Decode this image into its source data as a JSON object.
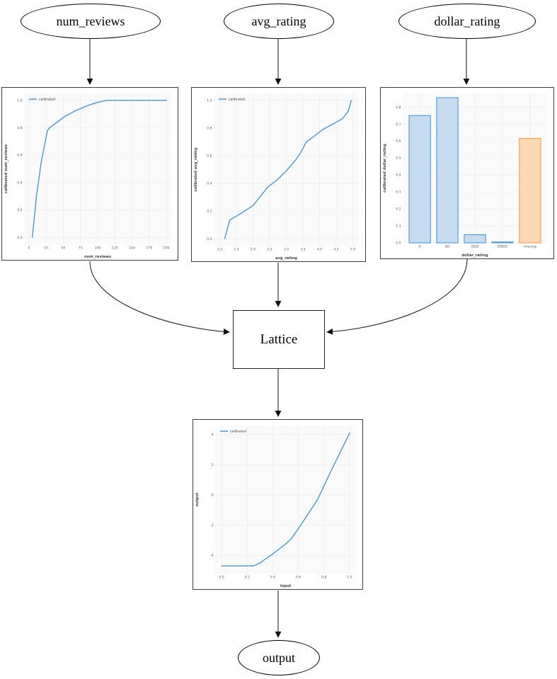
{
  "diagram": {
    "nodes": {
      "num_reviews": {
        "label": "num_reviews",
        "shape": "ellipse"
      },
      "avg_rating": {
        "label": "avg_rating",
        "shape": "ellipse"
      },
      "dollar_rating": {
        "label": "dollar_rating",
        "shape": "ellipse"
      },
      "lattice": {
        "label": "Lattice",
        "shape": "box"
      },
      "output": {
        "label": "output",
        "shape": "ellipse"
      }
    },
    "edges": [
      {
        "from": "num_reviews",
        "to": "calibration-num-reviews"
      },
      {
        "from": "avg_rating",
        "to": "calibration-avg-rating"
      },
      {
        "from": "dollar_rating",
        "to": "calibration-dollar-rating"
      },
      {
        "from": "calibration-num-reviews",
        "to": "lattice"
      },
      {
        "from": "calibration-avg-rating",
        "to": "lattice"
      },
      {
        "from": "calibration-dollar-rating",
        "to": "lattice"
      },
      {
        "from": "lattice",
        "to": "output-calibration"
      },
      {
        "from": "output-calibration",
        "to": "output"
      }
    ],
    "colors": {
      "node_border": "#000000",
      "edge": "#111111"
    }
  },
  "chart_data": [
    {
      "id": "calibration-num-reviews",
      "type": "line",
      "title": "",
      "xlabel": "num_reviews",
      "ylabel": "calibrated num_reviews",
      "legend": [
        "calibrated"
      ],
      "line_color": "#4a98d3",
      "xlim": [
        -7,
        207
      ],
      "ylim": [
        -0.05,
        1.05
      ],
      "x_ticks": [
        {
          "v": 0,
          "label": "0"
        },
        {
          "v": 25,
          "label": "25"
        },
        {
          "v": 50,
          "label": "50"
        },
        {
          "v": 75,
          "label": "75"
        },
        {
          "v": 100,
          "label": "100"
        },
        {
          "v": 125,
          "label": "125"
        },
        {
          "v": 150,
          "label": "150"
        },
        {
          "v": 175,
          "label": "175"
        },
        {
          "v": 200,
          "label": "200"
        }
      ],
      "y_ticks": [
        {
          "v": 0.0,
          "label": "0.0"
        },
        {
          "v": 0.2,
          "label": "0.2"
        },
        {
          "v": 0.4,
          "label": "0.4"
        },
        {
          "v": 0.6,
          "label": "0.6"
        },
        {
          "v": 0.8,
          "label": "0.8"
        },
        {
          "v": 1.0,
          "label": "1.0"
        }
      ],
      "x": [
        5,
        11,
        18,
        27,
        30,
        53,
        68,
        87,
        100,
        113,
        200
      ],
      "y": [
        0.0,
        0.3,
        0.55,
        0.78,
        0.8,
        0.885,
        0.925,
        0.965,
        0.985,
        1.0,
        1.0
      ]
    },
    {
      "id": "calibration-avg-rating",
      "type": "line",
      "title": "",
      "xlabel": "avg_rating",
      "ylabel": "calibrated avg_rating",
      "legend": [
        "calibrated"
      ],
      "line_color": "#4a98d3",
      "xlim": [
        0.82,
        5.18
      ],
      "ylim": [
        -0.05,
        1.05
      ],
      "x_ticks": [
        {
          "v": 1.0,
          "label": "1.0"
        },
        {
          "v": 1.5,
          "label": "1.5"
        },
        {
          "v": 2.0,
          "label": "2.0"
        },
        {
          "v": 2.5,
          "label": "2.5"
        },
        {
          "v": 3.0,
          "label": "3.0"
        },
        {
          "v": 3.5,
          "label": "3.5"
        },
        {
          "v": 4.0,
          "label": "4.0"
        },
        {
          "v": 4.5,
          "label": "4.5"
        },
        {
          "v": 5.0,
          "label": "5.0"
        }
      ],
      "y_ticks": [
        {
          "v": 0.0,
          "label": "0.0"
        },
        {
          "v": 0.2,
          "label": "0.2"
        },
        {
          "v": 0.4,
          "label": "0.4"
        },
        {
          "v": 0.6,
          "label": "0.6"
        },
        {
          "v": 0.8,
          "label": "0.8"
        },
        {
          "v": 1.0,
          "label": "1.0"
        }
      ],
      "x": [
        1.15,
        1.3,
        1.65,
        2.0,
        2.35,
        2.45,
        2.7,
        3.0,
        3.3,
        3.45,
        3.6,
        3.75,
        4.1,
        4.45,
        4.7,
        4.87,
        4.95
      ],
      "y": [
        0.0,
        0.135,
        0.185,
        0.24,
        0.345,
        0.375,
        0.42,
        0.49,
        0.575,
        0.63,
        0.7,
        0.725,
        0.79,
        0.835,
        0.87,
        0.925,
        1.0
      ]
    },
    {
      "id": "calibration-dollar-rating",
      "type": "bar",
      "title": "",
      "xlabel": "dollar_rating",
      "ylabel": "calibrated dollar_rating",
      "categories": [
        "D",
        "DD",
        "DDD",
        "DDDD",
        "missing"
      ],
      "values": [
        0.75,
        0.855,
        0.048,
        0.005,
        0.615
      ],
      "bar_fill": [
        "#c7dcf0",
        "#c7dcf0",
        "#c7dcf0",
        "#c7dcf0",
        "#fdd8b2"
      ],
      "bar_stroke": [
        "#4a98d3",
        "#4a98d3",
        "#4a98d3",
        "#4a98d3",
        "#fc9d4a"
      ],
      "ylim": [
        0,
        0.88
      ],
      "y_ticks": [
        {
          "v": 0.0,
          "label": "0.0"
        },
        {
          "v": 0.1,
          "label": "0.1"
        },
        {
          "v": 0.2,
          "label": "0.2"
        },
        {
          "v": 0.3,
          "label": "0.3"
        },
        {
          "v": 0.4,
          "label": "0.4"
        },
        {
          "v": 0.5,
          "label": "0.5"
        },
        {
          "v": 0.6,
          "label": "0.6"
        },
        {
          "v": 0.7,
          "label": "0.7"
        },
        {
          "v": 0.8,
          "label": "0.8"
        }
      ]
    },
    {
      "id": "output-calibration",
      "type": "line",
      "title": "",
      "xlabel": "input",
      "ylabel": "output",
      "legend": [
        "calibrated"
      ],
      "line_color": "#4a98d3",
      "xlim": [
        -0.05,
        1.05
      ],
      "ylim": [
        -5.2,
        4.6
      ],
      "x_ticks": [
        {
          "v": 0.0,
          "label": "0.0"
        },
        {
          "v": 0.2,
          "label": "0.2"
        },
        {
          "v": 0.4,
          "label": "0.4"
        },
        {
          "v": 0.6,
          "label": "0.6"
        },
        {
          "v": 0.8,
          "label": "0.8"
        },
        {
          "v": 1.0,
          "label": "1.0"
        }
      ],
      "y_ticks": [
        {
          "v": -4,
          "label": "-4"
        },
        {
          "v": -2,
          "label": "-2"
        },
        {
          "v": 0,
          "label": "0"
        },
        {
          "v": 2,
          "label": "2"
        },
        {
          "v": 4,
          "label": "4"
        }
      ],
      "x": [
        0.0,
        0.25,
        0.3,
        0.4,
        0.5,
        0.55,
        0.65,
        0.75,
        0.85,
        1.0
      ],
      "y": [
        -4.7,
        -4.7,
        -4.5,
        -3.9,
        -3.25,
        -2.85,
        -1.6,
        -0.3,
        1.5,
        4.1
      ]
    }
  ],
  "chart_style": {
    "plot_bg": "#fafafa",
    "grid": "#e9e9e9",
    "tick_color": "#555555",
    "label_color": "#444444"
  }
}
